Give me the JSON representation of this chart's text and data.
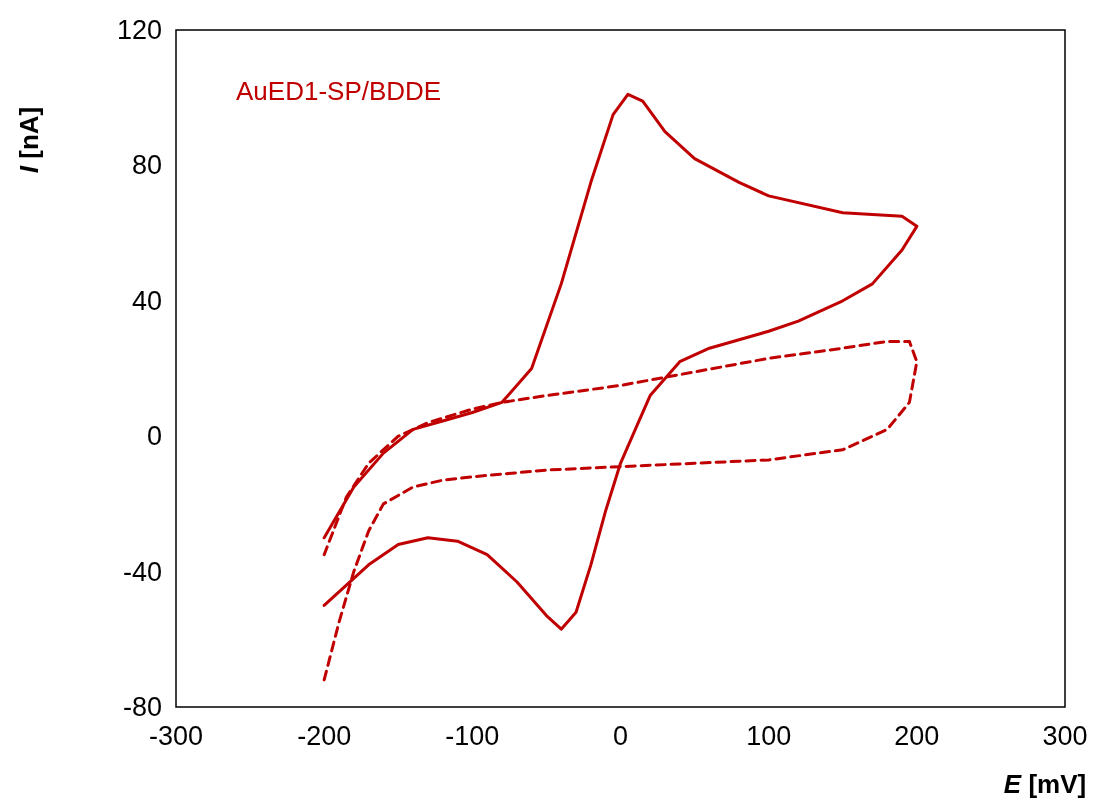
{
  "chart_data": {
    "type": "line",
    "xlabel": "E [mV]",
    "ylabel": "I [nA]",
    "xlim": [
      -300,
      300
    ],
    "xticks": [
      -300,
      -200,
      -100,
      0,
      100,
      200,
      300
    ],
    "ylim": [
      -80,
      120
    ],
    "yticks": [
      -80,
      -40,
      0,
      40,
      80,
      120
    ],
    "grid": false,
    "marker": "none",
    "annotations": [
      "AuED1-SP/BDDE"
    ],
    "series": [
      {
        "color": "#c00000",
        "line_style": "solid",
        "x": [
          -200,
          -180,
          -160,
          -140,
          -120,
          -100,
          -80,
          -60,
          -40,
          -20,
          -5,
          5,
          15,
          30,
          50,
          80,
          100,
          150,
          190,
          200,
          190,
          170,
          150,
          120,
          100,
          60,
          40,
          20,
          10,
          0,
          -10,
          -20,
          -30,
          -40,
          -50,
          -70,
          -90,
          -110,
          -130,
          -150,
          -170,
          -190,
          -200
        ],
        "values": [
          -30,
          -15,
          -5,
          2,
          4.5,
          7,
          10,
          20,
          45,
          75,
          95,
          101,
          99,
          90,
          82,
          75,
          71,
          66,
          65,
          62,
          55,
          45,
          40,
          34,
          31,
          26,
          22,
          12,
          2,
          -8,
          -22,
          -38,
          -52,
          -57,
          -53,
          -43,
          -35,
          -31,
          -30,
          -32,
          -38,
          -46,
          -50
        ]
      },
      {
        "color": "#c00000",
        "line_style": "dashed",
        "x": [
          -200,
          -190,
          -180,
          -170,
          -160,
          -140,
          -120,
          -100,
          -50,
          0,
          50,
          100,
          150,
          180,
          195,
          200,
          195,
          180,
          150,
          100,
          50,
          0,
          -50,
          -80,
          -100,
          -130,
          -150,
          -170,
          -185,
          -200
        ],
        "values": [
          -72,
          -55,
          -40,
          -28,
          -20,
          -15,
          -13,
          -12,
          -10,
          -9,
          -8,
          -7,
          -4,
          2,
          10,
          22,
          28,
          28,
          26,
          23,
          19,
          15,
          12,
          10,
          8,
          4,
          0,
          -8,
          -18,
          -35
        ]
      }
    ]
  }
}
